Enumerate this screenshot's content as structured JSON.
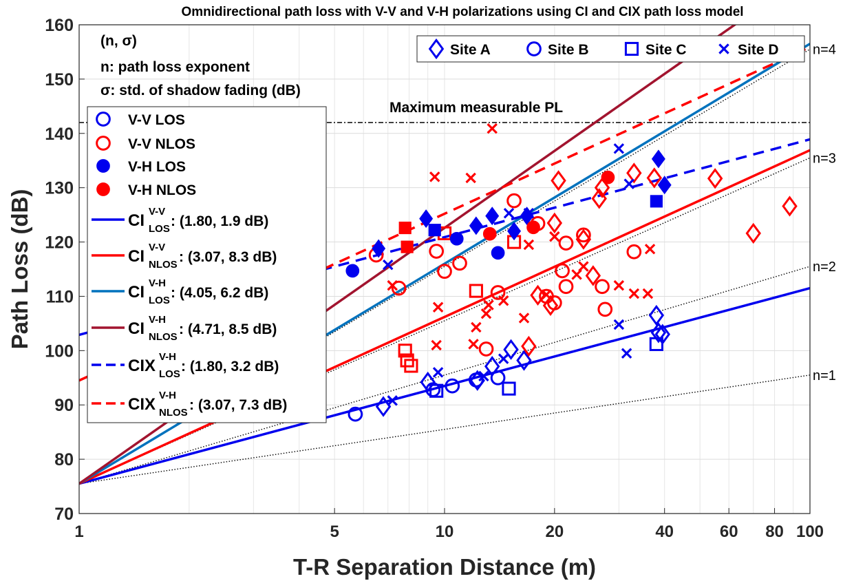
{
  "chart_data": {
    "type": "scatter",
    "title": "Omnidirectional path loss with V-V and V-H polarizations using CI and CIX path loss model",
    "xlabel": "T-R Separation Distance (m)",
    "ylabel": "Path Loss (dB)",
    "x_scale": "log",
    "xlim": [
      1,
      100
    ],
    "ylim": [
      70,
      160
    ],
    "x_ticks": [
      1,
      5,
      10,
      20,
      40,
      60,
      80,
      100
    ],
    "x_tick_labels": [
      "1",
      "5",
      "10",
      "20",
      "40",
      "60",
      "80",
      "100"
    ],
    "y_ticks": [
      70,
      80,
      90,
      100,
      110,
      120,
      130,
      140,
      150,
      160
    ],
    "y_tick_labels": [
      "70",
      "80",
      "90",
      "100",
      "110",
      "120",
      "130",
      "140",
      "150",
      "160"
    ],
    "grid": true,
    "colors": {
      "blue": "#0000ee",
      "red": "#ff0000",
      "teal": "#0072bd",
      "maroon": "#a2142f",
      "black": "#000000"
    },
    "annotations": {
      "param_header": "(n, σ)",
      "param_n": "n: path loss exponent",
      "param_sigma": "σ: std. of shadow fading (dB)",
      "max_pl_label": "Maximum measurable PL",
      "max_pl_value": 142
    },
    "reference_lines": [
      {
        "label": "n=1",
        "n": 1
      },
      {
        "label": "n=2",
        "n": 2
      },
      {
        "label": "n=3",
        "n": 3
      },
      {
        "label": "n=4",
        "n": 4
      }
    ],
    "fspl_1m": 75.5,
    "legend_sites": [
      {
        "marker": "diamond",
        "label": "Site A"
      },
      {
        "marker": "circle",
        "label": "Site B"
      },
      {
        "marker": "square",
        "label": "Site C"
      },
      {
        "marker": "x",
        "label": "Site D"
      }
    ],
    "legend_models": [
      {
        "type": "marker",
        "shape": "circle",
        "fill": false,
        "color": "#0000ee",
        "label": "V-V LOS"
      },
      {
        "type": "marker",
        "shape": "circle",
        "fill": false,
        "color": "#ff0000",
        "label": "V-V NLOS"
      },
      {
        "type": "marker",
        "shape": "circle",
        "fill": true,
        "color": "#0000ee",
        "label": "V-H LOS"
      },
      {
        "type": "marker",
        "shape": "circle",
        "fill": true,
        "color": "#ff0000",
        "label": "V-H NLOS"
      },
      {
        "type": "line",
        "dash": false,
        "color": "#0000ee",
        "base": "CI",
        "sup": "V-V",
        "sub": "LOS",
        "params": ": (1.80, 1.9 dB)"
      },
      {
        "type": "line",
        "dash": false,
        "color": "#ff0000",
        "base": "CI",
        "sup": "V-V",
        "sub": "NLOS",
        "params": ": (3.07, 8.3 dB)"
      },
      {
        "type": "line",
        "dash": false,
        "color": "#0072bd",
        "base": "CI",
        "sup": "V-H",
        "sub": "LOS",
        "params": ": (4.05, 6.2 dB)"
      },
      {
        "type": "line",
        "dash": false,
        "color": "#a2142f",
        "base": "CI",
        "sup": "V-H",
        "sub": "NLOS",
        "params": ": (4.71, 8.5 dB)"
      },
      {
        "type": "line",
        "dash": true,
        "color": "#0000ee",
        "base": "CIX",
        "sup": "V-H",
        "sub": "LOS",
        "params": ": (1.80, 3.2 dB)"
      },
      {
        "type": "line",
        "dash": true,
        "color": "#ff0000",
        "base": "CIX",
        "sup": "V-H",
        "sub": "NLOS",
        "params": ": (3.07, 7.3 dB)"
      }
    ],
    "model_lines": [
      {
        "name": "CI V-V LOS",
        "color": "#0000ee",
        "dash": false,
        "x": [
          1,
          100
        ],
        "y": [
          75.5,
          111.5
        ]
      },
      {
        "name": "CI V-V NLOS",
        "color": "#ff0000",
        "dash": false,
        "x": [
          1,
          100
        ],
        "y": [
          75.5,
          136.9
        ]
      },
      {
        "name": "CI V-H LOS",
        "color": "#0072bd",
        "dash": false,
        "x": [
          1,
          100
        ],
        "y": [
          75.5,
          156.5
        ]
      },
      {
        "name": "CI V-H NLOS",
        "color": "#a2142f",
        "dash": false,
        "x": [
          1,
          100
        ],
        "y": [
          75.5,
          169.7
        ]
      },
      {
        "name": "CIX V-H LOS",
        "color": "#0000ee",
        "dash": true,
        "x": [
          1,
          100
        ],
        "y": [
          102.9,
          138.9
        ]
      },
      {
        "name": "CIX V-H NLOS",
        "color": "#ff0000",
        "dash": true,
        "x": [
          1,
          100
        ],
        "y": [
          94.5,
          155.9
        ]
      }
    ],
    "series": [
      {
        "name": "V-V LOS Site A",
        "marker": "diamond",
        "fill": false,
        "color": "#0000ee",
        "points": [
          [
            6.8,
            89.7
          ],
          [
            9.0,
            94.2
          ],
          [
            12.3,
            94.5
          ],
          [
            13.5,
            97.1
          ],
          [
            15.2,
            100.2
          ],
          [
            16.5,
            98.2
          ],
          [
            38.0,
            106.5
          ],
          [
            38.5,
            103.3
          ],
          [
            39.5,
            103.0
          ]
        ]
      },
      {
        "name": "V-V LOS Site B",
        "marker": "circle",
        "fill": false,
        "color": "#0000ee",
        "points": [
          [
            5.7,
            88.3
          ],
          [
            9.3,
            92.8
          ],
          [
            10.5,
            93.5
          ],
          [
            12.2,
            94.6
          ],
          [
            14.0,
            95.0
          ]
        ]
      },
      {
        "name": "V-V LOS Site C",
        "marker": "square",
        "fill": false,
        "color": "#0000ee",
        "points": [
          [
            9.5,
            92.6
          ],
          [
            15.0,
            93.0
          ],
          [
            38.0,
            101.2
          ]
        ]
      },
      {
        "name": "V-V LOS Site D",
        "marker": "x",
        "fill": false,
        "color": "#0000ee",
        "points": [
          [
            7.2,
            90.8
          ],
          [
            9.6,
            96.0
          ],
          [
            12.8,
            95.3
          ],
          [
            14.5,
            98.5
          ],
          [
            30.0,
            104.8
          ],
          [
            31.5,
            99.5
          ]
        ]
      },
      {
        "name": "V-V NLOS Site A",
        "marker": "diamond",
        "fill": false,
        "color": "#ff0000",
        "points": [
          [
            17.0,
            100.8
          ],
          [
            18.0,
            110.2
          ],
          [
            19.5,
            108.3
          ],
          [
            20.0,
            123.5
          ],
          [
            20.5,
            131.3
          ],
          [
            24.0,
            120.5
          ],
          [
            25.5,
            113.8
          ],
          [
            26.5,
            128.0
          ],
          [
            27.0,
            130.0
          ],
          [
            33.0,
            132.7
          ],
          [
            37.5,
            131.8
          ],
          [
            55.0,
            131.7
          ],
          [
            70.0,
            121.6
          ],
          [
            88.0,
            126.6
          ]
        ]
      },
      {
        "name": "V-V NLOS Site B",
        "marker": "circle",
        "fill": false,
        "color": "#ff0000",
        "points": [
          [
            6.5,
            117.6
          ],
          [
            7.5,
            111.5
          ],
          [
            9.5,
            118.3
          ],
          [
            10.0,
            114.6
          ],
          [
            11.0,
            116.1
          ],
          [
            13.0,
            100.3
          ],
          [
            14.0,
            110.7
          ],
          [
            15.5,
            127.6
          ],
          [
            18.0,
            123.4
          ],
          [
            19.0,
            110.0
          ],
          [
            20.0,
            108.8
          ],
          [
            21.0,
            114.7
          ],
          [
            21.5,
            111.8
          ],
          [
            21.5,
            119.8
          ],
          [
            24.0,
            121.3
          ],
          [
            27.0,
            111.8
          ],
          [
            27.5,
            107.6
          ],
          [
            33.0,
            118.2
          ]
        ]
      },
      {
        "name": "V-V NLOS Site C",
        "marker": "square",
        "fill": false,
        "color": "#ff0000",
        "points": [
          [
            7.8,
            100.0
          ],
          [
            7.9,
            98.2
          ],
          [
            8.1,
            97.2
          ],
          [
            10.0,
            121.6
          ],
          [
            12.2,
            111.0
          ],
          [
            15.5,
            120.0
          ]
        ]
      },
      {
        "name": "V-V NLOS Site D",
        "marker": "x",
        "fill": false,
        "color": "#ff0000",
        "points": [
          [
            7.2,
            112.0
          ],
          [
            9.5,
            101.0
          ],
          [
            9.6,
            108.0
          ],
          [
            9.4,
            132.0
          ],
          [
            11.8,
            131.8
          ],
          [
            12.0,
            101.2
          ],
          [
            12.2,
            104.3
          ],
          [
            13.0,
            106.8
          ],
          [
            13.2,
            108.4
          ],
          [
            13.5,
            140.9
          ],
          [
            14.5,
            109.2
          ],
          [
            16.5,
            106.0
          ],
          [
            17.0,
            119.5
          ],
          [
            19.0,
            110.3
          ],
          [
            20.0,
            121.0
          ],
          [
            23.0,
            114.0
          ],
          [
            24.0,
            115.5
          ],
          [
            30.0,
            112.0
          ],
          [
            33.0,
            110.5
          ],
          [
            36.0,
            110.5
          ],
          [
            36.5,
            118.7
          ]
        ]
      },
      {
        "name": "V-H LOS Site A",
        "marker": "diamond",
        "fill": true,
        "color": "#0000ee",
        "points": [
          [
            6.6,
            118.8
          ],
          [
            8.9,
            124.3
          ],
          [
            12.2,
            123.0
          ],
          [
            13.5,
            124.8
          ],
          [
            15.5,
            122.0
          ],
          [
            16.8,
            124.8
          ],
          [
            38.5,
            135.3
          ],
          [
            40.0,
            130.5
          ]
        ]
      },
      {
        "name": "V-H LOS Site B",
        "marker": "circle",
        "fill": true,
        "color": "#0000ee",
        "points": [
          [
            5.6,
            114.7
          ],
          [
            10.8,
            120.6
          ],
          [
            14.0,
            118.0
          ]
        ]
      },
      {
        "name": "V-H LOS Site C",
        "marker": "square",
        "fill": true,
        "color": "#0000ee",
        "points": [
          [
            9.4,
            122.2
          ],
          [
            38.0,
            127.5
          ]
        ]
      },
      {
        "name": "V-H LOS Site D",
        "marker": "x",
        "fill": true,
        "color": "#0000ee",
        "points": [
          [
            7.0,
            115.8
          ],
          [
            15.0,
            125.3
          ],
          [
            17.0,
            125.3
          ],
          [
            30.0,
            137.2
          ],
          [
            32.0,
            130.7
          ]
        ]
      },
      {
        "name": "V-H NLOS Site B",
        "marker": "circle",
        "fill": true,
        "color": "#ff0000",
        "points": [
          [
            13.3,
            121.5
          ],
          [
            17.5,
            122.7
          ],
          [
            28.0,
            131.9
          ]
        ]
      },
      {
        "name": "V-H NLOS Site C",
        "marker": "square",
        "fill": true,
        "color": "#ff0000",
        "points": [
          [
            7.8,
            122.6
          ],
          [
            7.9,
            119.1
          ]
        ]
      }
    ]
  }
}
